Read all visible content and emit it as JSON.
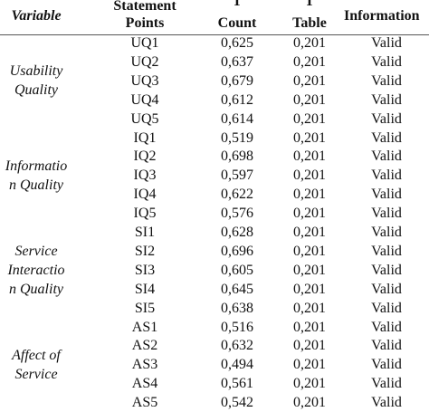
{
  "header": {
    "variable": "Variable",
    "statement_points": [
      "Statement",
      "Points"
    ],
    "t_count": [
      "T",
      "Count"
    ],
    "t_table": [
      "T",
      "Table"
    ],
    "information": "Information"
  },
  "groups": [
    {
      "variable": [
        "Usability",
        "Quality"
      ],
      "rows": [
        [
          "UQ1",
          "0,625",
          "0,201",
          "Valid"
        ],
        [
          "UQ2",
          "0,637",
          "0,201",
          "Valid"
        ],
        [
          "UQ3",
          "0,679",
          "0,201",
          "Valid"
        ],
        [
          "UQ4",
          "0,612",
          "0,201",
          "Valid"
        ],
        [
          "UQ5",
          "0,614",
          "0,201",
          "Valid"
        ]
      ]
    },
    {
      "variable": [
        "Informatio",
        "n Quality"
      ],
      "rows": [
        [
          "IQ1",
          "0,519",
          "0,201",
          "Valid"
        ],
        [
          "IQ2",
          "0,698",
          "0,201",
          "Valid"
        ],
        [
          "IQ3",
          "0,597",
          "0,201",
          "Valid"
        ],
        [
          "IQ4",
          "0,622",
          "0,201",
          "Valid"
        ],
        [
          "IQ5",
          "0,576",
          "0,201",
          "Valid"
        ]
      ]
    },
    {
      "variable": [
        "Service",
        "Interactio",
        "n Quality"
      ],
      "rows": [
        [
          "SI1",
          "0,628",
          "0,201",
          "Valid"
        ],
        [
          "SI2",
          "0,696",
          "0,201",
          "Valid"
        ],
        [
          "SI3",
          "0,605",
          "0,201",
          "Valid"
        ],
        [
          "SI4",
          "0,645",
          "0,201",
          "Valid"
        ],
        [
          "SI5",
          "0,638",
          "0,201",
          "Valid"
        ]
      ]
    },
    {
      "variable": [
        "Affect of",
        "Service"
      ],
      "rows": [
        [
          "AS1",
          "0,516",
          "0,201",
          "Valid"
        ],
        [
          "AS2",
          "0,632",
          "0,201",
          "Valid"
        ],
        [
          "AS3",
          "0,494",
          "0,201",
          "Valid"
        ],
        [
          "AS4",
          "0,561",
          "0,201",
          "Valid"
        ],
        [
          "AS5",
          "0,542",
          "0,201",
          "Valid"
        ]
      ]
    }
  ]
}
